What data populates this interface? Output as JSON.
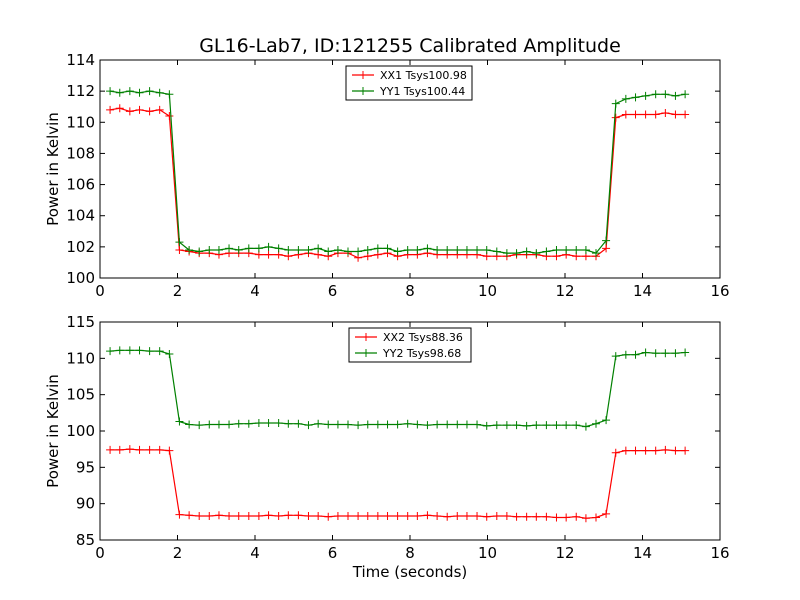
{
  "chart_data": [
    {
      "type": "line",
      "title": "GL16-Lab7, ID:121255 Calibrated Amplitude",
      "xlabel": "",
      "ylabel": "Power in Kelvin",
      "xlim": [
        0,
        16
      ],
      "ylim": [
        100,
        114
      ],
      "xticks": [
        "0",
        "2",
        "4",
        "6",
        "8",
        "10",
        "12",
        "14",
        "16"
      ],
      "yticks": [
        "100",
        "102",
        "104",
        "106",
        "108",
        "110",
        "112",
        "114"
      ],
      "legend_position": "top-center",
      "grid": false,
      "x": [
        0.26,
        0.51,
        0.77,
        1.02,
        1.28,
        1.54,
        1.79,
        2.05,
        2.3,
        2.56,
        2.82,
        3.07,
        3.33,
        3.58,
        3.84,
        4.1,
        4.35,
        4.61,
        4.86,
        5.12,
        5.38,
        5.63,
        5.89,
        6.14,
        6.4,
        6.66,
        6.91,
        7.17,
        7.42,
        7.68,
        7.94,
        8.19,
        8.45,
        8.7,
        8.96,
        9.22,
        9.47,
        9.73,
        9.98,
        10.24,
        10.5,
        10.75,
        11.01,
        11.26,
        11.52,
        11.78,
        12.03,
        12.29,
        12.54,
        12.8,
        13.06,
        13.31,
        13.57,
        13.82,
        14.08,
        14.34,
        14.59,
        14.85,
        15.1
      ],
      "series": [
        {
          "name": "XX1 Tsys100.98",
          "color": "#ff0000",
          "values": [
            110.8,
            110.9,
            110.7,
            110.8,
            110.7,
            110.8,
            110.4,
            101.8,
            101.7,
            101.6,
            101.6,
            101.5,
            101.6,
            101.6,
            101.6,
            101.5,
            101.5,
            101.5,
            101.4,
            101.5,
            101.6,
            101.5,
            101.4,
            101.6,
            101.6,
            101.3,
            101.4,
            101.5,
            101.6,
            101.4,
            101.5,
            101.5,
            101.6,
            101.5,
            101.5,
            101.5,
            101.5,
            101.5,
            101.4,
            101.4,
            101.4,
            101.5,
            101.5,
            101.5,
            101.4,
            101.4,
            101.5,
            101.4,
            101.4,
            101.4,
            101.9,
            110.3,
            110.5,
            110.5,
            110.5,
            110.5,
            110.6,
            110.5,
            110.5
          ]
        },
        {
          "name": "YY1 Tsys100.44",
          "color": "#008000",
          "values": [
            112.0,
            111.9,
            112.0,
            111.9,
            112.0,
            111.9,
            111.8,
            102.3,
            101.8,
            101.7,
            101.8,
            101.8,
            101.9,
            101.8,
            101.9,
            101.9,
            102.0,
            101.9,
            101.8,
            101.8,
            101.8,
            101.9,
            101.7,
            101.8,
            101.7,
            101.7,
            101.8,
            101.9,
            101.9,
            101.7,
            101.8,
            101.8,
            101.9,
            101.8,
            101.8,
            101.8,
            101.8,
            101.8,
            101.8,
            101.7,
            101.6,
            101.6,
            101.7,
            101.6,
            101.7,
            101.8,
            101.8,
            101.8,
            101.8,
            101.6,
            102.4,
            111.2,
            111.5,
            111.6,
            111.7,
            111.8,
            111.8,
            111.7,
            111.8
          ]
        }
      ]
    },
    {
      "type": "line",
      "title": "",
      "xlabel": "Time (seconds)",
      "ylabel": "Power in Kelvin",
      "xlim": [
        0,
        16
      ],
      "ylim": [
        85,
        115
      ],
      "xticks": [
        "0",
        "2",
        "4",
        "6",
        "8",
        "10",
        "12",
        "14",
        "16"
      ],
      "yticks": [
        "85",
        "90",
        "95",
        "100",
        "105",
        "110",
        "115"
      ],
      "legend_position": "top-center",
      "grid": false,
      "x": [
        0.26,
        0.51,
        0.77,
        1.02,
        1.28,
        1.54,
        1.79,
        2.05,
        2.3,
        2.56,
        2.82,
        3.07,
        3.33,
        3.58,
        3.84,
        4.1,
        4.35,
        4.61,
        4.86,
        5.12,
        5.38,
        5.63,
        5.89,
        6.14,
        6.4,
        6.66,
        6.91,
        7.17,
        7.42,
        7.68,
        7.94,
        8.19,
        8.45,
        8.7,
        8.96,
        9.22,
        9.47,
        9.73,
        9.98,
        10.24,
        10.5,
        10.75,
        11.01,
        11.26,
        11.52,
        11.78,
        12.03,
        12.29,
        12.54,
        12.8,
        13.06,
        13.31,
        13.57,
        13.82,
        14.08,
        14.34,
        14.59,
        14.85,
        15.1
      ],
      "series": [
        {
          "name": "XX2 Tsys88.36",
          "color": "#ff0000",
          "values": [
            97.4,
            97.4,
            97.5,
            97.4,
            97.4,
            97.4,
            97.3,
            88.5,
            88.4,
            88.3,
            88.3,
            88.4,
            88.3,
            88.3,
            88.3,
            88.3,
            88.4,
            88.3,
            88.4,
            88.4,
            88.3,
            88.3,
            88.2,
            88.3,
            88.3,
            88.3,
            88.3,
            88.3,
            88.3,
            88.3,
            88.3,
            88.3,
            88.4,
            88.3,
            88.2,
            88.3,
            88.3,
            88.3,
            88.2,
            88.3,
            88.3,
            88.2,
            88.2,
            88.2,
            88.2,
            88.1,
            88.1,
            88.2,
            88.0,
            88.1,
            88.6,
            97.0,
            97.3,
            97.3,
            97.3,
            97.3,
            97.4,
            97.3,
            97.3
          ]
        },
        {
          "name": "YY2 Tsys98.68",
          "color": "#008000",
          "values": [
            111.0,
            111.1,
            111.1,
            111.1,
            111.0,
            111.0,
            110.6,
            101.3,
            100.9,
            100.8,
            100.9,
            100.9,
            100.9,
            101.0,
            101.0,
            101.1,
            101.1,
            101.1,
            101.0,
            101.0,
            100.8,
            101.0,
            100.9,
            100.9,
            100.9,
            100.8,
            100.9,
            100.9,
            100.9,
            100.9,
            101.0,
            100.9,
            100.8,
            100.9,
            100.9,
            100.9,
            100.9,
            100.9,
            100.7,
            100.8,
            100.8,
            100.8,
            100.7,
            100.8,
            100.8,
            100.8,
            100.8,
            100.8,
            100.6,
            101.0,
            101.5,
            110.3,
            110.5,
            110.5,
            110.8,
            110.7,
            110.7,
            110.7,
            110.8
          ]
        }
      ]
    }
  ]
}
